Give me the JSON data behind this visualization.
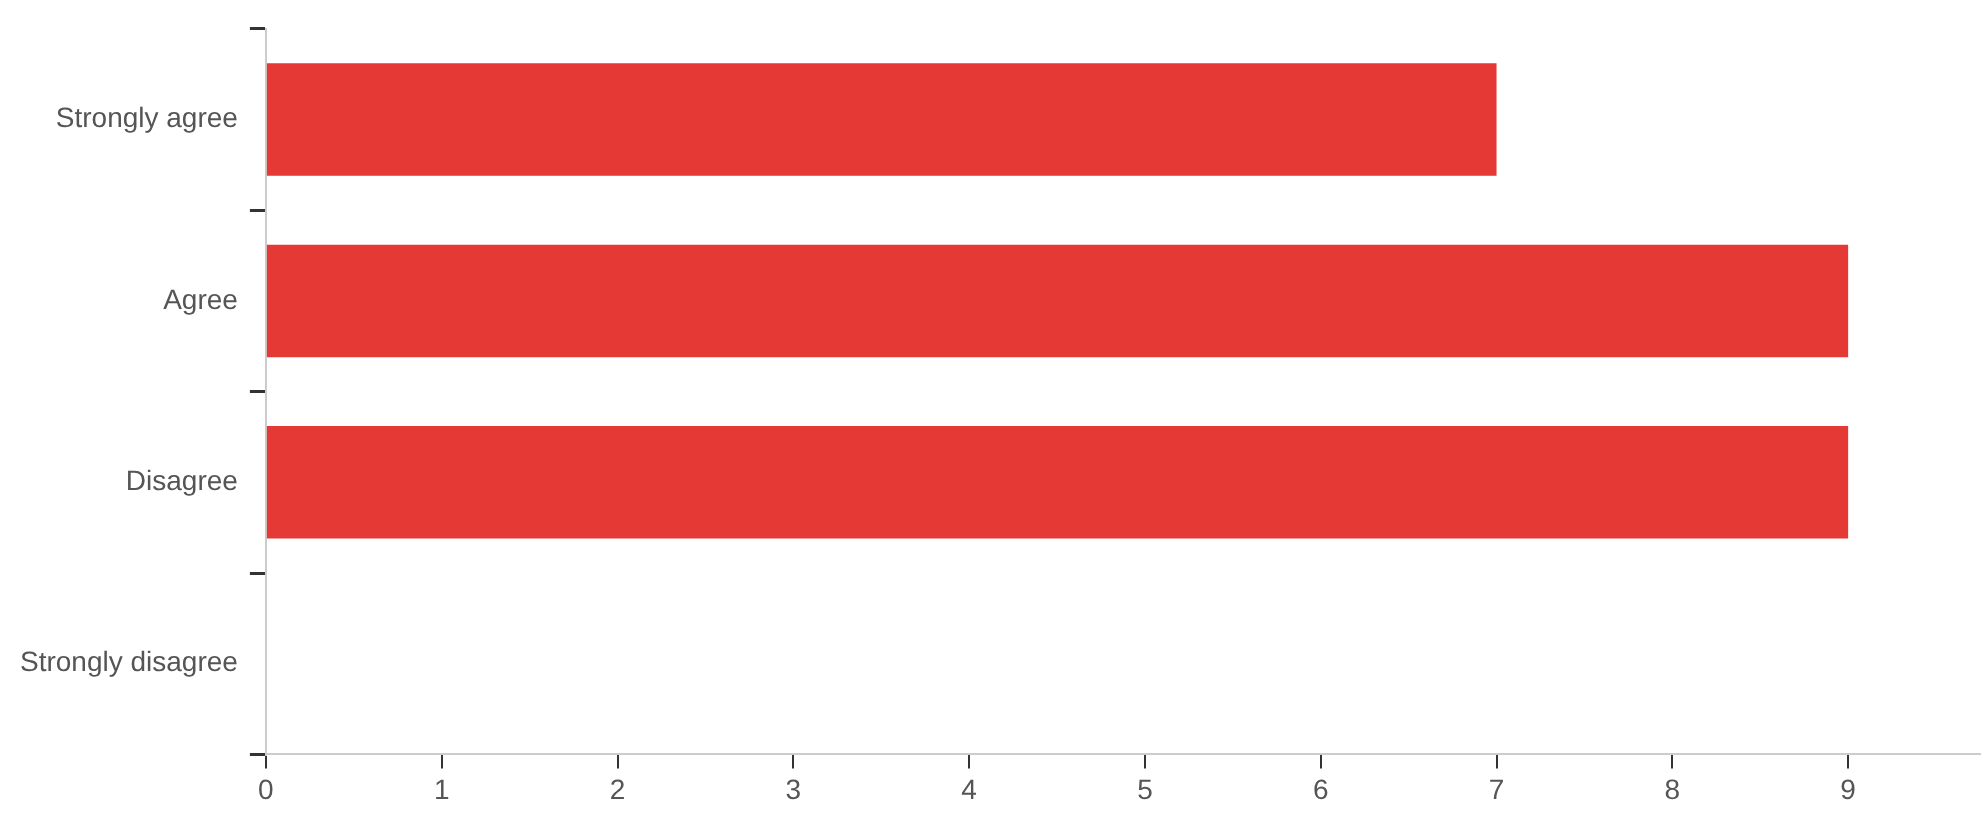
{
  "chart_data": {
    "type": "bar",
    "orientation": "horizontal",
    "categories": [
      "Strongly agree",
      "Agree",
      "Disagree",
      "Strongly disagree"
    ],
    "values": [
      7,
      9,
      9,
      0
    ],
    "color": "#e53935",
    "xlim": [
      0,
      9.75
    ],
    "xticks": [
      0,
      1,
      2,
      3,
      4,
      5,
      6,
      7,
      8,
      9
    ],
    "grid": false,
    "legend": false
  }
}
